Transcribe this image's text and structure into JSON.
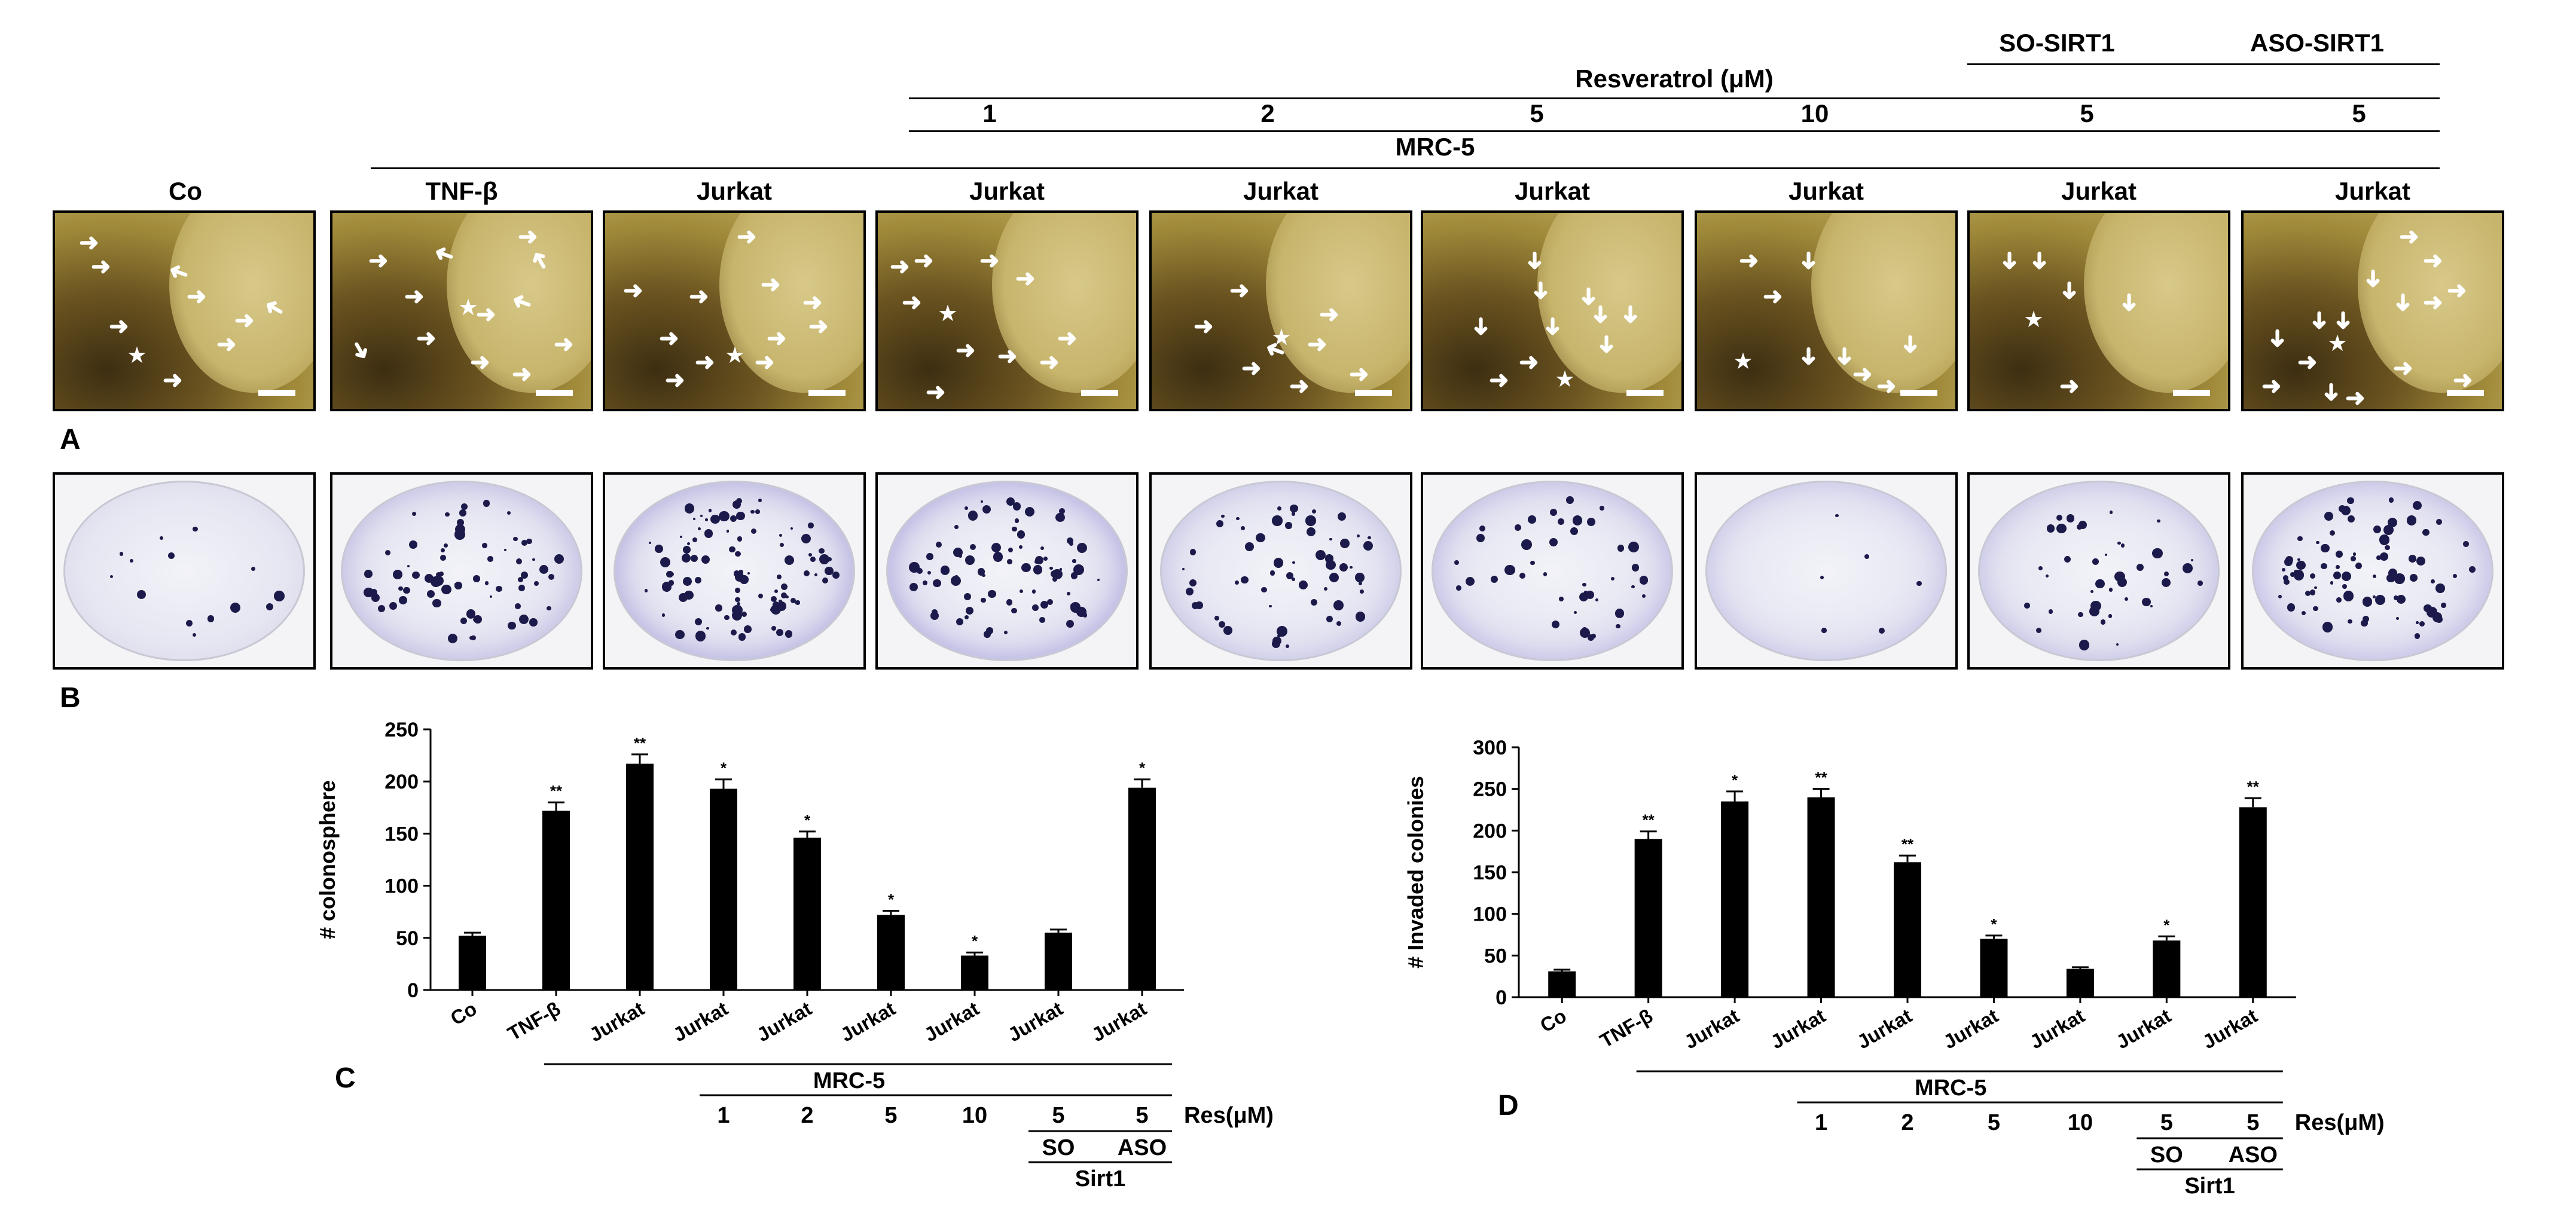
{
  "panel_letters": {
    "a": "A",
    "b": "B",
    "c": "C",
    "d": "D"
  },
  "top_header": {
    "resveratrol": "Resveratrol (μM)",
    "so_sirt1": "SO-SIRT1",
    "aso_sirt1": "ASO-SIRT1",
    "doses": [
      "1",
      "2",
      "5",
      "10",
      "5",
      "5"
    ],
    "mrc5": "MRC-5",
    "columns": [
      "Co",
      "TNF-β",
      "Jurkat",
      "Jurkat",
      "Jurkat",
      "Jurkat",
      "Jurkat",
      "Jurkat",
      "Jurkat"
    ]
  },
  "micro_arrow_glyph": "➜",
  "micro_star_glyph": "★",
  "chart_data": [
    {
      "type": "bar",
      "ylabel": "# colonosphere",
      "ylim": [
        0,
        250
      ],
      "yticks": [
        "250",
        "200",
        "150",
        "100",
        "50",
        "0"
      ],
      "categories": [
        "Co",
        "TNF-β",
        "Jurkat",
        "Jurkat",
        "Jurkat",
        "Jurkat",
        "Jurkat",
        "Jurkat",
        "Jurkat"
      ],
      "values": [
        52,
        172,
        217,
        193,
        146,
        72,
        33,
        55,
        194
      ],
      "errors": [
        3,
        8,
        9,
        9,
        6,
        4,
        3,
        3,
        8
      ],
      "significance": [
        "",
        "**",
        "**",
        "*",
        "*",
        "*",
        "*",
        "",
        "*"
      ],
      "footer": {
        "mrc5": "MRC-5",
        "doses": [
          "1",
          "2",
          "5",
          "10",
          "5",
          "5"
        ],
        "res": "Res(μM)",
        "so": "SO",
        "aso": "ASO",
        "sirt1": "Sirt1"
      }
    },
    {
      "type": "bar",
      "ylabel": "# Invaded colonies",
      "ylim": [
        0,
        300
      ],
      "yticks": [
        "300",
        "250",
        "200",
        "150",
        "100",
        "50",
        "0"
      ],
      "categories": [
        "Co",
        "TNF-β",
        "Jurkat",
        "Jurkat",
        "Jurkat",
        "Jurkat",
        "Jurkat",
        "Jurkat",
        "Jurkat"
      ],
      "values": [
        31,
        190,
        235,
        240,
        162,
        70,
        34,
        68,
        228
      ],
      "errors": [
        2,
        9,
        12,
        10,
        8,
        4,
        2,
        5,
        11
      ],
      "significance": [
        "",
        "**",
        "*",
        "**",
        "**",
        "*",
        "",
        "*",
        "**"
      ],
      "footer": {
        "mrc5": "MRC-5",
        "doses": [
          "1",
          "2",
          "5",
          "10",
          "5",
          "5"
        ],
        "res": "Res(μM)",
        "so": "SO",
        "aso": "ASO",
        "sirt1": "Sirt1"
      }
    }
  ]
}
